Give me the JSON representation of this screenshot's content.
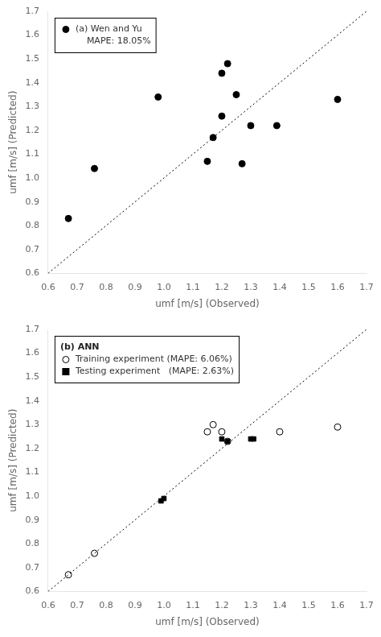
{
  "chart_data": [
    {
      "type": "scatter",
      "xlabel": "umf [m/s] (Observed)",
      "ylabel": "umf [m/s] (Predicted)",
      "xlim": [
        0.6,
        1.7
      ],
      "ylim": [
        0.6,
        1.7
      ],
      "xticks": [
        0.6,
        0.7,
        0.8,
        0.9,
        {
          "value": 1,
          "label": "1.0"
        },
        1.1,
        1.2,
        1.3,
        1.4,
        1.5,
        1.6,
        1.7
      ],
      "yticks": [
        0.6,
        0.7,
        0.8,
        0.9,
        {
          "value": 1,
          "label": "1.0"
        },
        1.1,
        1.2,
        1.3,
        1.4,
        1.5,
        1.6,
        1.7
      ],
      "grid": false,
      "legend": "upper left",
      "series": [
        {
          "name": "(a) Wen and Yu\n    MAPE: 18.05%",
          "type": "scatter",
          "marker": "circle",
          "color": "black",
          "x": [
            0.67,
            0.76,
            0.98,
            1.15,
            1.17,
            1.2,
            1.2,
            1.22,
            1.25,
            1.27,
            1.3,
            1.39,
            1.6
          ],
          "values": [
            0.83,
            1.04,
            1.34,
            1.07,
            1.17,
            1.44,
            1.26,
            1.48,
            1.35,
            1.06,
            1.22,
            1.22,
            1.33
          ]
        },
        {
          "type": "line",
          "line_style": "dotted",
          "color": "black",
          "x": [
            0.6,
            1.7
          ],
          "values": [
            0.6,
            1.7
          ]
        }
      ]
    },
    {
      "type": "scatter",
      "legend_title": "(b) ANN",
      "xlabel": "umf [m/s] (Observed)",
      "ylabel": "umf [m/s] (Predicted)",
      "xlim": [
        0.6,
        1.7
      ],
      "ylim": [
        0.6,
        1.7
      ],
      "xticks": [
        0.6,
        0.7,
        0.8,
        0.9,
        {
          "value": 1,
          "label": "1.0"
        },
        1.1,
        1.2,
        1.3,
        1.4,
        1.5,
        1.6,
        1.7
      ],
      "yticks": [
        0.6,
        0.7,
        0.8,
        0.9,
        {
          "value": 1,
          "label": "1.0"
        },
        1.1,
        1.2,
        1.3,
        1.4,
        1.5,
        1.6,
        1.7
      ],
      "grid": false,
      "legend": "upper left",
      "series": [
        {
          "name": "Training experiment (MAPE: 6.06%)",
          "type": "scatter",
          "marker": "circle_open",
          "color": "black",
          "x": [
            0.67,
            0.76,
            1.15,
            1.17,
            1.2,
            1.22,
            1.4,
            1.6
          ],
          "values": [
            0.67,
            0.76,
            1.27,
            1.3,
            1.27,
            1.23,
            1.27,
            1.29
          ]
        },
        {
          "name": "Testing experiment   (MAPE: 2.63%)",
          "type": "scatter",
          "marker": "square",
          "color": "black",
          "x": [
            0.99,
            1.0,
            1.2,
            1.22,
            1.3,
            1.31
          ],
          "values": [
            0.98,
            0.99,
            1.24,
            1.23,
            1.24,
            1.24
          ]
        },
        {
          "type": "line",
          "line_style": "dotted",
          "color": "black",
          "x": [
            0.6,
            1.7
          ],
          "values": [
            0.6,
            1.7
          ]
        }
      ]
    }
  ]
}
